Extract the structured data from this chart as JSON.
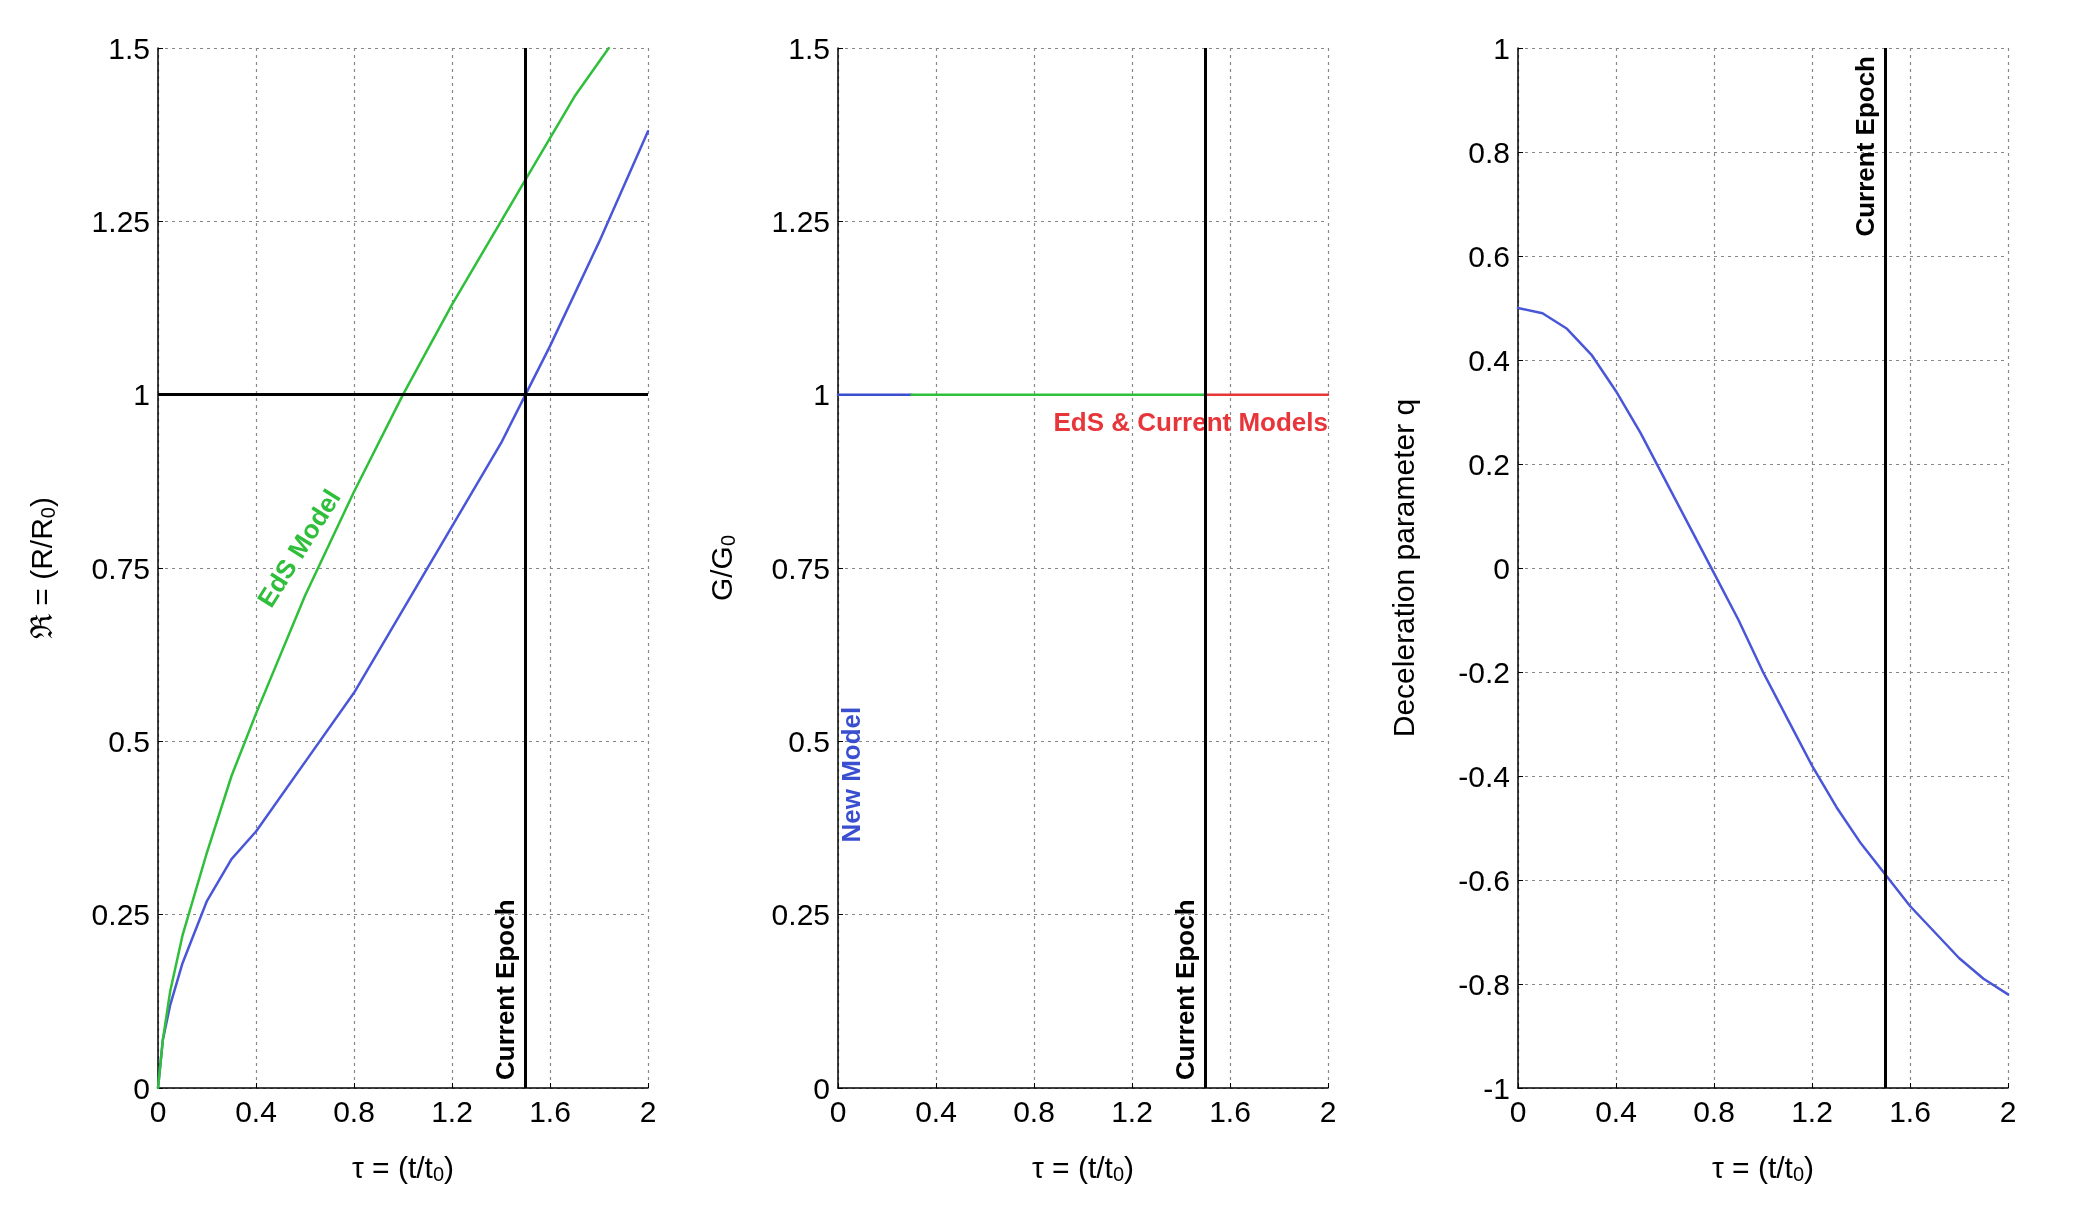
{
  "chart_data": [
    {
      "type": "line",
      "xlabel": "τ = (t/t$_{0}$)",
      "ylabel": "ℜ = (R/R$_{0}$)",
      "xlim": [
        0,
        2
      ],
      "xticks": [
        0,
        0.4,
        0.8,
        1.2,
        1.6,
        2
      ],
      "ylim": [
        0,
        1.5
      ],
      "yticks": [
        0,
        0.25,
        0.5,
        0.75,
        1,
        1.25,
        1.5
      ],
      "grid": true,
      "marker": "none",
      "line_style": "solid",
      "series": [
        {
          "color": "#4a56d8",
          "x": [
            0,
            0.02,
            0.05,
            0.1,
            0.2,
            0.3,
            0.4,
            0.6,
            0.8,
            1.0,
            1.2,
            1.4,
            1.5,
            1.6,
            1.8,
            2.0
          ],
          "values": [
            0,
            0.07,
            0.12,
            0.18,
            0.27,
            0.33,
            0.37,
            0.47,
            0.57,
            0.69,
            0.81,
            0.93,
            1.0,
            1.07,
            1.22,
            1.38
          ]
        },
        {
          "name": "EdS Model",
          "color": "#2fbf3a",
          "x": [
            0,
            0.02,
            0.05,
            0.1,
            0.2,
            0.3,
            0.4,
            0.6,
            0.8,
            1.0,
            1.2,
            1.4,
            1.5,
            1.6,
            1.7,
            1.84
          ],
          "values": [
            0,
            0.07,
            0.14,
            0.22,
            0.34,
            0.45,
            0.54,
            0.71,
            0.86,
            1.0,
            1.13,
            1.25,
            1.31,
            1.37,
            1.43,
            1.5
          ]
        }
      ],
      "ref_lines": [
        {
          "axis": "x",
          "value": 1.5,
          "label": "Current Epoch",
          "color": "#000000"
        },
        {
          "axis": "y",
          "value": 1,
          "color": "#000000"
        }
      ]
    },
    {
      "type": "line",
      "xlabel": "τ = (t/t$_{0}$)",
      "ylabel": "G/G$_{0}$",
      "xlim": [
        0,
        2
      ],
      "xticks": [
        0,
        0.4,
        0.8,
        1.2,
        1.6,
        2
      ],
      "ylim": [
        0,
        1.5
      ],
      "yticks": [
        0,
        0.25,
        0.5,
        0.75,
        1,
        1.25,
        1.5
      ],
      "grid": true,
      "marker": "none",
      "line_style": "solid",
      "series": [
        {
          "name": "New Model",
          "color": "#3a4fd0",
          "x": [
            0,
            0.3
          ],
          "values": [
            1,
            1
          ]
        },
        {
          "color": "#2fbf3a",
          "x": [
            0.3,
            1.5
          ],
          "values": [
            1,
            1
          ]
        },
        {
          "name": "EdS & Current Models",
          "color": "#e8353a",
          "x": [
            1.5,
            2
          ],
          "values": [
            1,
            1
          ]
        }
      ],
      "ref_lines": [
        {
          "axis": "x",
          "value": 1.5,
          "label": "Current Epoch",
          "color": "#000000"
        }
      ]
    },
    {
      "type": "line",
      "xlabel": "τ = (t/t$_{0}$)",
      "ylabel": "Deceleration parameter q",
      "xlim": [
        0,
        2
      ],
      "xticks": [
        0,
        0.4,
        0.8,
        1.2,
        1.6,
        2
      ],
      "ylim": [
        -1,
        1
      ],
      "yticks": [
        -1,
        -0.8,
        -0.6,
        -0.4,
        -0.2,
        0,
        0.2,
        0.4,
        0.6,
        0.8,
        1
      ],
      "grid": true,
      "marker": "none",
      "line_style": "solid",
      "series": [
        {
          "color": "#4a56d8",
          "x": [
            0,
            0.1,
            0.2,
            0.3,
            0.4,
            0.5,
            0.6,
            0.7,
            0.8,
            0.9,
            1.0,
            1.1,
            1.2,
            1.3,
            1.4,
            1.5,
            1.6,
            1.7,
            1.8,
            1.9,
            2.0
          ],
          "values": [
            0.5,
            0.49,
            0.46,
            0.41,
            0.34,
            0.26,
            0.17,
            0.08,
            -0.01,
            -0.1,
            -0.2,
            -0.29,
            -0.38,
            -0.46,
            -0.53,
            -0.59,
            -0.65,
            -0.7,
            -0.75,
            -0.79,
            -0.82
          ]
        }
      ],
      "ref_lines": [
        {
          "axis": "x",
          "value": 1.5,
          "label": "Current Epoch",
          "color": "#000000"
        }
      ]
    }
  ]
}
